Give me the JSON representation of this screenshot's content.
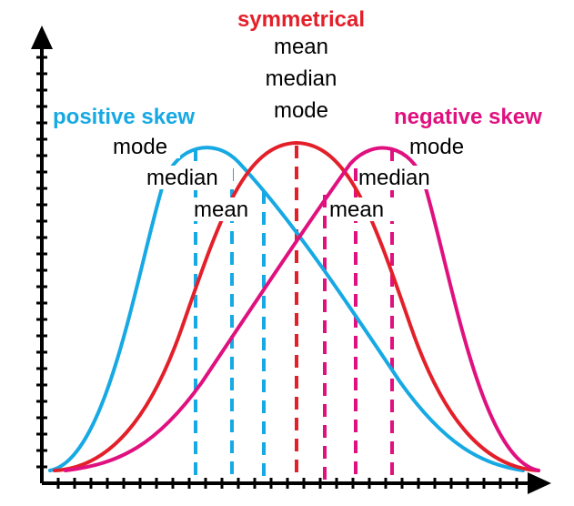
{
  "colors": {
    "positive": "#16a9e3",
    "symmetrical": "#e3202a",
    "negative": "#e0117f",
    "axis": "#000000",
    "background": "#ffffff"
  },
  "labels": {
    "symmetrical": {
      "title": "symmetrical",
      "line1": "mean",
      "line2": "median",
      "line3": "mode"
    },
    "positive": {
      "title": "positive skew",
      "mode": "mode",
      "median": "median",
      "mean": "mean"
    },
    "negative": {
      "title": "negative skew",
      "mode": "mode",
      "median": "median",
      "mean": "mean"
    }
  }
}
